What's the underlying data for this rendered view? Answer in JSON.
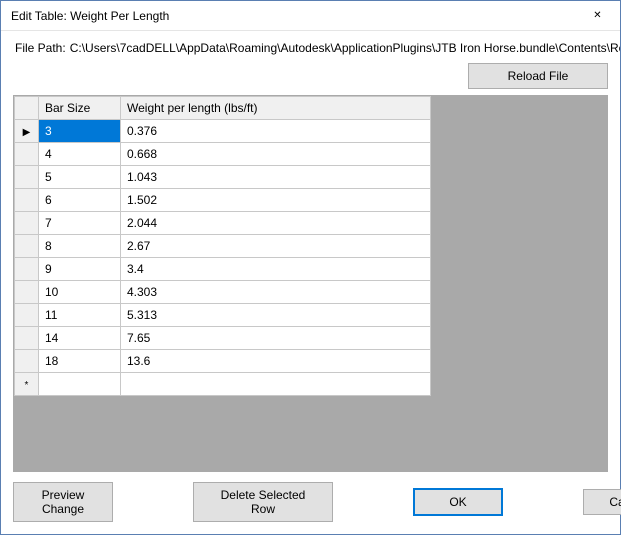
{
  "window": {
    "title": "Edit Table: Weight Per Length",
    "close_glyph": "✕"
  },
  "path": {
    "label": "File Path:",
    "value": "C:\\Users\\7cadDELL\\AppData\\Roaming\\Autodesk\\ApplicationPlugins\\JTB Iron Horse.bundle\\Contents\\Rebar shapes\\We"
  },
  "toolbar": {
    "reload": "Reload File"
  },
  "grid": {
    "columns": [
      "Bar Size",
      "Weight per length (lbs/ft)"
    ],
    "rows": [
      {
        "size": "3",
        "weight": "0.376",
        "marker": "▶",
        "selected": true
      },
      {
        "size": "4",
        "weight": "0.668",
        "marker": "",
        "selected": false
      },
      {
        "size": "5",
        "weight": "1.043",
        "marker": "",
        "selected": false
      },
      {
        "size": "6",
        "weight": "1.502",
        "marker": "",
        "selected": false
      },
      {
        "size": "7",
        "weight": "2.044",
        "marker": "",
        "selected": false
      },
      {
        "size": "8",
        "weight": "2.67",
        "marker": "",
        "selected": false
      },
      {
        "size": "9",
        "weight": "3.4",
        "marker": "",
        "selected": false
      },
      {
        "size": "10",
        "weight": "4.303",
        "marker": "",
        "selected": false
      },
      {
        "size": "11",
        "weight": "5.313",
        "marker": "",
        "selected": false
      },
      {
        "size": "14",
        "weight": "7.65",
        "marker": "",
        "selected": false
      },
      {
        "size": "18",
        "weight": "13.6",
        "marker": "",
        "selected": false
      }
    ],
    "newrow_marker": "*"
  },
  "footer": {
    "preview": "Preview Change",
    "delete": "Delete Selected Row",
    "ok": "OK",
    "cancel": "Cancel"
  },
  "style": {
    "accent": "#0078d7",
    "grid_bg": "#a9a9a9",
    "button_bg": "#e1e1e1",
    "border": "#adadad"
  }
}
